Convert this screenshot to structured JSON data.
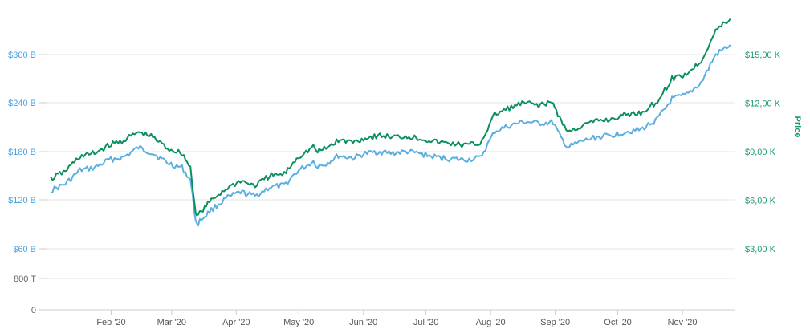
{
  "chart_data": {
    "type": "line",
    "title": "",
    "xlabel": "",
    "ylabel_left": "",
    "ylabel_right": "Price",
    "x_ticks": [
      "Feb '20",
      "Mar '20",
      "Apr '20",
      "May '20",
      "Jun '20",
      "Jul '20",
      "Aug '20",
      "Sep '20",
      "Oct '20",
      "Nov '20"
    ],
    "left_axis_ticks": [
      {
        "label": "0",
        "color": "gray"
      },
      {
        "label": "800 T",
        "color": "gray"
      },
      {
        "label": "$60 B",
        "color": "blue"
      },
      {
        "label": "$120 B",
        "color": "blue"
      },
      {
        "label": "$180 B",
        "color": "blue"
      },
      {
        "label": "$240 B",
        "color": "blue"
      },
      {
        "label": "$300 B",
        "color": "blue"
      }
    ],
    "right_axis_ticks": [
      "$3,00 K",
      "$6,00 K",
      "$9,00 K",
      "$12,00 K",
      "$15,00 K"
    ],
    "left_ylim_B": [
      60,
      330
    ],
    "right_ylim_K": [
      3,
      16.5
    ],
    "grid": true,
    "colors": {
      "market_cap": "#5aaee0",
      "price": "#0b8f5e",
      "left_axis": "#4aa3df",
      "right_axis": "#1a9c6a"
    },
    "x_dates": [
      "2020-01-03",
      "2020-01-10",
      "2020-01-17",
      "2020-01-24",
      "2020-01-31",
      "2020-02-07",
      "2020-02-14",
      "2020-02-21",
      "2020-02-28",
      "2020-03-06",
      "2020-03-10",
      "2020-03-12",
      "2020-03-13",
      "2020-03-16",
      "2020-03-20",
      "2020-03-27",
      "2020-04-03",
      "2020-04-10",
      "2020-04-17",
      "2020-04-24",
      "2020-04-30",
      "2020-05-08",
      "2020-05-10",
      "2020-05-14",
      "2020-05-20",
      "2020-05-27",
      "2020-06-01",
      "2020-06-08",
      "2020-06-15",
      "2020-06-22",
      "2020-06-29",
      "2020-07-06",
      "2020-07-13",
      "2020-07-20",
      "2020-07-27",
      "2020-08-03",
      "2020-08-10",
      "2020-08-17",
      "2020-08-24",
      "2020-08-31",
      "2020-09-03",
      "2020-09-07",
      "2020-09-14",
      "2020-09-21",
      "2020-09-28",
      "2020-10-05",
      "2020-10-12",
      "2020-10-20",
      "2020-10-27",
      "2020-11-03",
      "2020-11-10",
      "2020-11-17",
      "2020-11-24"
    ],
    "series": [
      {
        "name": "Market Cap",
        "axis": "left",
        "unit": "B",
        "values": [
          132,
          140,
          157,
          160,
          170,
          173,
          185,
          178,
          166,
          160,
          145,
          105,
          90,
          98,
          108,
          122,
          130,
          125,
          136,
          138,
          155,
          168,
          162,
          165,
          175,
          172,
          177,
          180,
          178,
          180,
          177,
          173,
          171,
          170,
          172,
          205,
          212,
          217,
          215,
          216,
          200,
          185,
          193,
          198,
          200,
          205,
          207,
          220,
          245,
          250,
          265,
          300,
          312
        ]
      },
      {
        "name": "Price",
        "axis": "right",
        "unit": "K",
        "values": [
          7.3,
          7.8,
          8.7,
          8.9,
          9.4,
          9.7,
          10.2,
          9.9,
          9.2,
          8.9,
          8.0,
          5.8,
          5.0,
          5.4,
          6.0,
          6.7,
          7.2,
          6.9,
          7.5,
          7.6,
          8.6,
          9.3,
          9.0,
          9.2,
          9.7,
          9.6,
          9.8,
          10.0,
          9.9,
          9.95,
          9.8,
          9.6,
          9.5,
          9.4,
          9.5,
          11.3,
          11.7,
          12.0,
          11.9,
          12.0,
          11.1,
          10.2,
          10.6,
          10.9,
          11.0,
          11.3,
          11.4,
          12.1,
          13.5,
          13.8,
          14.6,
          16.5,
          17.2
        ]
      }
    ]
  }
}
